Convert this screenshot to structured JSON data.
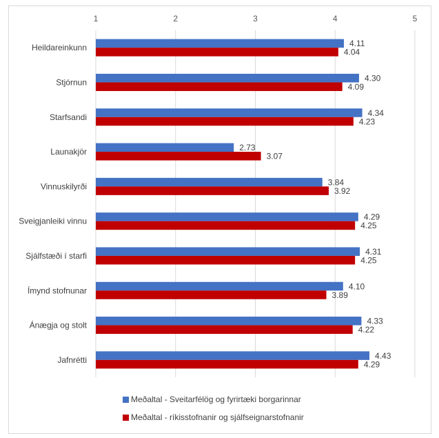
{
  "chart_data": {
    "type": "bar",
    "orientation": "horizontal",
    "title": "",
    "xlabel": "",
    "ylabel": "",
    "xlim": [
      1,
      5
    ],
    "x_ticks": [
      "1",
      "2",
      "3",
      "4",
      "5"
    ],
    "x_axis_position": "top",
    "grid": true,
    "legend_position": "bottom",
    "categories": [
      "Heildareinkunn",
      "Stjórnun",
      "Starfsandi",
      "Launakjör",
      "Vinnuskilyrði",
      "Sveigjanleiki vinnu",
      "Sjálfstæði í starfi",
      "Ímynd stofnunar",
      "Ánægja og stolt",
      "Jafnrétti"
    ],
    "series": [
      {
        "name": "Meðaltal - Sveitarfélög og fyrirtæki borgarinnar",
        "color": "#4472c4",
        "values": [
          4.11,
          4.3,
          4.34,
          2.73,
          3.84,
          4.29,
          4.31,
          4.1,
          4.33,
          4.43
        ],
        "labels": [
          "4.11",
          "4.30",
          "4.34",
          "2.73",
          "3.84",
          "4.29",
          "4.31",
          "4.10",
          "4.33",
          "4.43"
        ]
      },
      {
        "name": "Meðaltal - ríkisstofnanir og sjálfseignarstofnanir",
        "color": "#c00000",
        "values": [
          4.04,
          4.09,
          4.23,
          3.07,
          3.92,
          4.25,
          4.25,
          3.89,
          4.22,
          4.29
        ],
        "labels": [
          "4.04",
          "4.09",
          "4.23",
          "3.07",
          "3.92",
          "4.25",
          "4.25",
          "3.89",
          "4.22",
          "4.29"
        ]
      }
    ]
  }
}
